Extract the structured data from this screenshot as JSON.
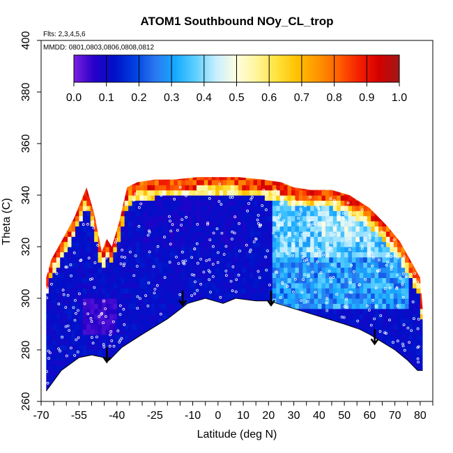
{
  "chart_data": {
    "type": "heatmap",
    "title": "ATOM1 Southbound NOy_CL_trop",
    "flights_label": "Flts: 2,3,4,5,6",
    "mmdd_label": "MMDD: 0801,0803,0806,0808,0812",
    "xlabel": "Latitude (deg N)",
    "ylabel": "Theta (C)",
    "xlim": [
      -70,
      85
    ],
    "ylim": [
      260,
      400
    ],
    "x_ticks": [
      -70,
      -55,
      -40,
      -25,
      -10,
      0,
      10,
      20,
      30,
      40,
      50,
      60,
      70,
      80
    ],
    "x_tick_labels": [
      "-70",
      "-55",
      "-40",
      "-25",
      "-10",
      "0",
      "10",
      "20",
      "30",
      "40",
      "50",
      "60",
      "70",
      "80"
    ],
    "y_ticks": [
      260,
      280,
      300,
      320,
      340,
      360,
      380,
      400
    ],
    "y_tick_labels": [
      "260",
      "280",
      "300",
      "320",
      "340",
      "360",
      "380",
      "400"
    ],
    "colorbar": {
      "min": 0.0,
      "max": 1.0,
      "ticks": [
        "0.0",
        "0.1",
        "0.2",
        "0.3",
        "0.4",
        "0.5",
        "0.6",
        "0.7",
        "0.8",
        "0.9",
        "1.0"
      ],
      "colors": [
        "#7b1fe0",
        "#2600c8",
        "#0010c8",
        "#0040e0",
        "#2a78f0",
        "#16aaff",
        "#5fd0ff",
        "#c9efff",
        "#fffde0",
        "#fff59a",
        "#ffe23a",
        "#ffc000",
        "#ff9500",
        "#ff6000",
        "#f52000",
        "#d40000",
        "#a01818"
      ]
    },
    "upper_boundary": [
      [
        -68,
        308
      ],
      [
        -66,
        315
      ],
      [
        -62,
        322
      ],
      [
        -57,
        331
      ],
      [
        -52,
        343
      ],
      [
        -49,
        333
      ],
      [
        -46,
        318
      ],
      [
        -44,
        323
      ],
      [
        -42,
        320
      ],
      [
        -39,
        330
      ],
      [
        -36,
        343
      ],
      [
        -32,
        345
      ],
      [
        -25,
        346
      ],
      [
        -18,
        346
      ],
      [
        -8,
        347
      ],
      [
        0,
        347
      ],
      [
        8,
        347
      ],
      [
        18,
        346
      ],
      [
        25,
        345
      ],
      [
        30,
        343
      ],
      [
        37,
        342
      ],
      [
        45,
        342
      ],
      [
        52,
        340
      ],
      [
        60,
        335
      ],
      [
        67,
        328
      ],
      [
        72,
        322
      ],
      [
        76,
        315
      ],
      [
        80,
        308
      ],
      [
        81,
        296
      ]
    ],
    "lower_boundary": [
      [
        -68,
        264
      ],
      [
        -62,
        272
      ],
      [
        -55,
        277
      ],
      [
        -50,
        278
      ],
      [
        -45,
        277
      ],
      [
        -43,
        276
      ],
      [
        -38,
        281
      ],
      [
        -30,
        286
      ],
      [
        -20,
        292
      ],
      [
        -12,
        298
      ],
      [
        -5,
        300
      ],
      [
        2,
        298
      ],
      [
        7,
        300
      ],
      [
        15,
        299
      ],
      [
        20,
        299
      ],
      [
        30,
        296
      ],
      [
        40,
        293
      ],
      [
        50,
        290
      ],
      [
        56,
        288
      ],
      [
        60,
        286
      ],
      [
        65,
        283
      ],
      [
        70,
        280
      ],
      [
        75,
        276
      ],
      [
        79,
        272
      ],
      [
        81,
        272
      ]
    ],
    "arrows": [
      {
        "lat": -44,
        "theta": 281
      },
      {
        "lat": -14,
        "theta": 303
      },
      {
        "lat": 21,
        "theta": 303
      },
      {
        "lat": 62,
        "theta": 288
      }
    ]
  }
}
